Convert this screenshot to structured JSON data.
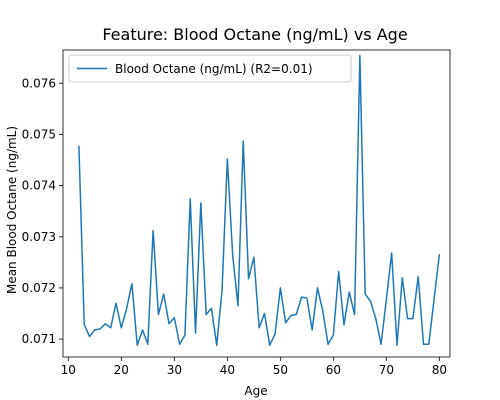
{
  "chart_data": {
    "type": "line",
    "title": "Feature: Blood Octane (ng/mL) vs Age",
    "xlabel": "Age",
    "ylabel": "Mean Blood Octane (ng/mL)",
    "xlim": [
      9,
      82
    ],
    "ylim": [
      0.07065,
      0.07665
    ],
    "xticks": [
      10,
      20,
      30,
      40,
      50,
      60,
      70,
      80
    ],
    "xtick_labels": [
      "10",
      "20",
      "30",
      "40",
      "50",
      "60",
      "70",
      "80"
    ],
    "yticks": [
      0.071,
      0.072,
      0.073,
      0.074,
      0.075,
      0.076
    ],
    "ytick_labels": [
      "0.071",
      "0.072",
      "0.073",
      "0.074",
      "0.075",
      "0.076"
    ],
    "grid": false,
    "legend_position": "upper-left",
    "series": [
      {
        "name": "Blood Octane (ng/mL) (R2=0.01)",
        "color": "#1f77b4",
        "x": [
          12,
          13,
          14,
          15,
          16,
          17,
          18,
          19,
          20,
          21,
          22,
          23,
          24,
          25,
          26,
          27,
          28,
          29,
          30,
          31,
          32,
          33,
          34,
          35,
          36,
          37,
          38,
          39,
          40,
          41,
          42,
          43,
          44,
          45,
          46,
          47,
          48,
          49,
          50,
          51,
          52,
          53,
          54,
          55,
          56,
          57,
          58,
          59,
          60,
          61,
          62,
          63,
          64,
          65,
          66,
          67,
          68,
          69,
          70,
          71,
          72,
          73,
          74,
          75,
          76,
          77,
          78,
          79,
          80
        ],
        "y": [
          0.07478,
          0.07129,
          0.07105,
          0.07118,
          0.0712,
          0.0713,
          0.07122,
          0.0717,
          0.07122,
          0.0716,
          0.07208,
          0.07088,
          0.07118,
          0.0709,
          0.07312,
          0.07148,
          0.07188,
          0.0713,
          0.07142,
          0.0709,
          0.07108,
          0.07374,
          0.07112,
          0.07366,
          0.07148,
          0.0716,
          0.07088,
          0.07195,
          0.07452,
          0.07265,
          0.07165,
          0.07487,
          0.07218,
          0.0726,
          0.07122,
          0.0715,
          0.07088,
          0.0711,
          0.072,
          0.07132,
          0.07146,
          0.07148,
          0.07182,
          0.0718,
          0.07118,
          0.072,
          0.07155,
          0.0709,
          0.07108,
          0.07232,
          0.07128,
          0.07192,
          0.07148,
          0.07654,
          0.07188,
          0.07174,
          0.0714,
          0.0709,
          0.07178,
          0.07268,
          0.07088,
          0.0722,
          0.0714,
          0.0714,
          0.07222,
          0.0709,
          0.0709,
          0.07178,
          0.07266
        ]
      }
    ]
  }
}
